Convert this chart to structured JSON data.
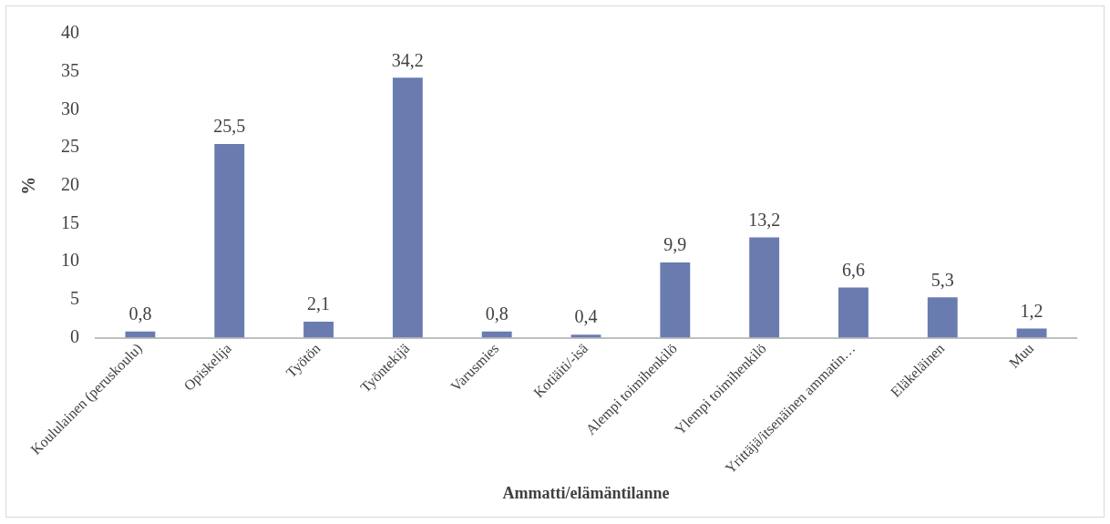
{
  "chart_data": {
    "type": "bar",
    "xlabel": "Ammatti/elämäntilanne",
    "ylabel": "%",
    "categories": [
      "Koululainen (peruskoulu)",
      "Opiskelija",
      "Työtön",
      "Työntekijä",
      "Varusmies",
      "Kotiäiti/-isä",
      "Alempi toimihenkilö",
      "Ylempi toimihenkilö",
      "Yrittäjä/itsenäinen ammatin…",
      "Eläkeläinen",
      "Muu"
    ],
    "values": [
      0.8,
      25.5,
      2.1,
      34.2,
      0.8,
      0.4,
      9.9,
      13.2,
      6.6,
      5.3,
      1.2
    ],
    "value_labels": [
      "0,8",
      "25,5",
      "2,1",
      "34,2",
      "0,8",
      "0,4",
      "9,9",
      "13,2",
      "6,6",
      "5,3",
      "1,2"
    ],
    "color": "#6a7bb0",
    "ylim": [
      0,
      40
    ],
    "yticks": [
      0,
      5,
      10,
      15,
      20,
      25,
      30,
      35,
      40
    ],
    "grid": false
  }
}
